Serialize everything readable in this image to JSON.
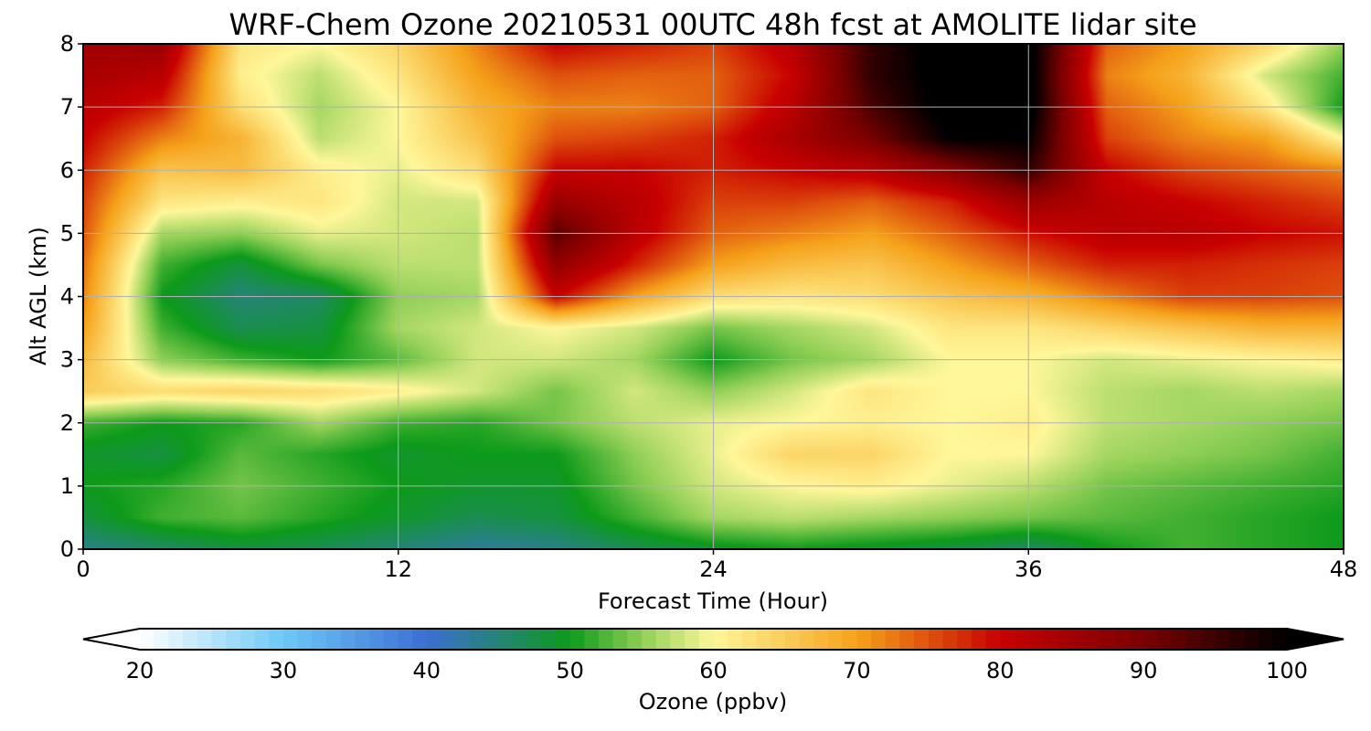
{
  "chart_data": {
    "type": "heatmap",
    "title": "WRF-Chem Ozone  20210531 00UTC 48h fcst at AMOLITE lidar site",
    "xlabel": "Forecast Time (Hour)",
    "ylabel": "Alt AGL (km)",
    "xlim": [
      0,
      48
    ],
    "ylim": [
      0,
      8
    ],
    "x_ticks": [
      0,
      12,
      24,
      36,
      48
    ],
    "y_ticks": [
      0,
      1,
      2,
      3,
      4,
      5,
      6,
      7,
      8
    ],
    "grid": true,
    "x": [
      0,
      3,
      6,
      9,
      12,
      15,
      18,
      21,
      24,
      27,
      30,
      33,
      36,
      39,
      42,
      45,
      48
    ],
    "y": [
      0,
      0.5,
      1,
      1.5,
      2,
      2.5,
      3,
      3.5,
      4,
      4.5,
      5,
      5.5,
      6,
      6.5,
      7,
      7.5,
      8
    ],
    "z": [
      [
        44,
        46,
        48,
        47,
        45,
        43,
        44,
        47,
        49,
        50,
        49,
        48,
        46,
        50,
        52,
        51,
        50
      ],
      [
        48,
        52,
        53,
        51,
        49,
        47,
        48,
        52,
        56,
        57,
        56,
        55,
        54,
        53,
        52,
        51,
        50
      ],
      [
        50,
        51,
        54,
        52,
        50,
        49,
        49,
        54,
        58,
        60,
        61,
        59,
        57,
        54,
        53,
        52,
        51
      ],
      [
        49,
        48,
        53,
        51,
        49,
        50,
        50,
        55,
        59,
        64,
        64,
        60,
        60,
        56,
        55,
        54,
        52
      ],
      [
        52,
        50,
        51,
        56,
        52,
        51,
        54,
        57,
        59,
        60,
        61,
        60,
        61,
        57,
        56,
        55,
        54
      ],
      [
        65,
        63,
        64,
        63,
        61,
        58,
        54,
        58,
        55,
        58,
        62,
        60,
        60,
        57,
        56,
        57,
        56
      ],
      [
        67,
        55,
        52,
        50,
        53,
        58,
        58,
        56,
        50,
        54,
        56,
        60,
        60,
        58,
        59,
        60,
        61
      ],
      [
        70,
        52,
        47,
        48,
        56,
        58,
        60,
        58,
        54,
        56,
        58,
        62,
        62,
        64,
        66,
        68,
        68
      ],
      [
        72,
        50,
        45,
        46,
        55,
        56,
        80,
        70,
        63,
        62,
        63,
        66,
        68,
        72,
        76,
        76,
        75
      ],
      [
        73,
        52,
        48,
        54,
        57,
        57,
        87,
        78,
        70,
        67,
        66,
        70,
        74,
        78,
        78,
        77,
        76
      ],
      [
        75,
        56,
        55,
        59,
        58,
        57,
        93,
        82,
        74,
        72,
        70,
        74,
        79,
        82,
        82,
        80,
        79
      ],
      [
        76,
        62,
        61,
        62,
        58,
        58,
        86,
        82,
        76,
        76,
        74,
        78,
        86,
        82,
        80,
        78,
        76
      ],
      [
        78,
        66,
        67,
        61,
        59,
        63,
        80,
        80,
        78,
        80,
        82,
        88,
        96,
        80,
        76,
        74,
        72
      ],
      [
        80,
        72,
        68,
        57,
        60,
        66,
        75,
        76,
        78,
        84,
        90,
        100,
        100,
        76,
        72,
        70,
        60
      ],
      [
        82,
        78,
        63,
        56,
        60,
        68,
        72,
        72,
        74,
        82,
        94,
        102,
        102,
        74,
        70,
        62,
        50
      ],
      [
        84,
        82,
        61,
        57,
        62,
        70,
        75,
        74,
        74,
        80,
        96,
        102,
        102,
        72,
        68,
        58,
        52
      ],
      [
        85,
        86,
        62,
        60,
        64,
        72,
        80,
        78,
        76,
        82,
        96,
        102,
        102,
        74,
        70,
        64,
        55
      ]
    ],
    "colorbar": {
      "label": "Ozone  (ppbv)",
      "min": 20,
      "max": 100,
      "ticks": [
        20,
        30,
        40,
        50,
        60,
        70,
        80,
        90,
        100
      ],
      "extend": "both",
      "colormap": [
        [
          20,
          "#ffffff"
        ],
        [
          30,
          "#6ec8f8"
        ],
        [
          40,
          "#3b6fd3"
        ],
        [
          50,
          "#0d9a1a"
        ],
        [
          55,
          "#8fcf55"
        ],
        [
          60,
          "#fff79a"
        ],
        [
          70,
          "#f5a21a"
        ],
        [
          80,
          "#c80000"
        ],
        [
          90,
          "#7a0000"
        ],
        [
          100,
          "#000000"
        ]
      ]
    }
  }
}
